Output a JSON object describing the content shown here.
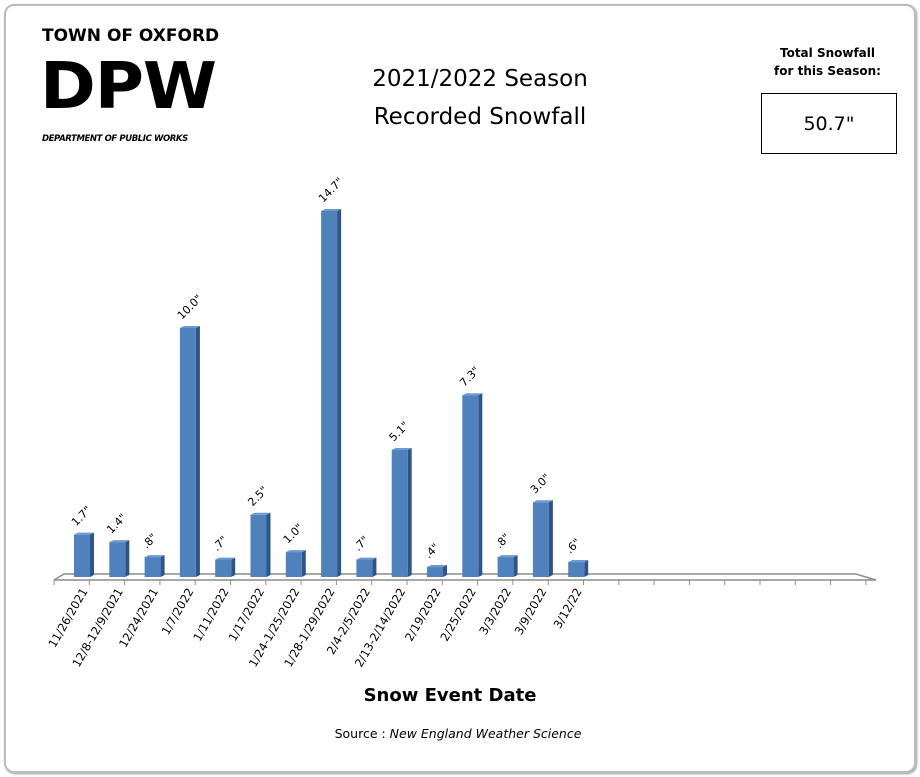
{
  "header": {
    "org_line": "TOWN OF OXFORD",
    "logo_text": "DPW",
    "dept_line": "DEPARTMENT OF PUBLIC WORKS",
    "title_line1": "2021/2022 Season",
    "title_line2": "Recorded Snowfall"
  },
  "total": {
    "label_line1": "Total Snowfall",
    "label_line2": "for this Season:",
    "value": "50.7\""
  },
  "footer": {
    "xlabel": "Snow Event Date",
    "source_prefix": "Source : ",
    "source_name": "New England Weather Science"
  },
  "colors": {
    "bar_front": "#4f81bd",
    "bar_side": "#2f5487",
    "bar_top": "#6e9ad1",
    "axis": "#8c8c8c"
  },
  "chart_data": {
    "type": "bar",
    "title": "2021/2022 Season Recorded Snowfall",
    "xlabel": "Snow Event Date",
    "ylabel": "",
    "categories": [
      "11/26/2021",
      "12/8-12/9/2021",
      "12/24/2021",
      "1/7/2022",
      "1/11/2022",
      "1/17/2022",
      "1/24-1/25/2022",
      "1/28-1/29/2022",
      "2/4-2/5/2022",
      "2/13-2/14/2022",
      "2/19/2022",
      "2/25/2022",
      "3/3/2022",
      "3/9/2022",
      "3/12/22"
    ],
    "values": [
      1.7,
      1.4,
      0.8,
      10.0,
      0.7,
      2.5,
      1.0,
      14.7,
      0.7,
      5.1,
      0.4,
      7.3,
      0.8,
      3.0,
      0.6
    ],
    "data_labels": [
      "1.7\"",
      "1.4\"",
      ".8\"",
      "10.0\"",
      ".7\"",
      "2.5\"",
      "1.0\"",
      "14.7\"",
      ".7\"",
      "5.1\"",
      ".4\"",
      "7.3\"",
      ".8\"",
      "3.0\"",
      ".6\""
    ],
    "empty_slots": 8,
    "ylim": [
      0,
      15
    ],
    "grid": false,
    "legend": null,
    "style": "3d-column",
    "annotations": [
      "Total Snowfall for this Season: 50.7\""
    ],
    "source": "Source : New England Weather Science"
  }
}
